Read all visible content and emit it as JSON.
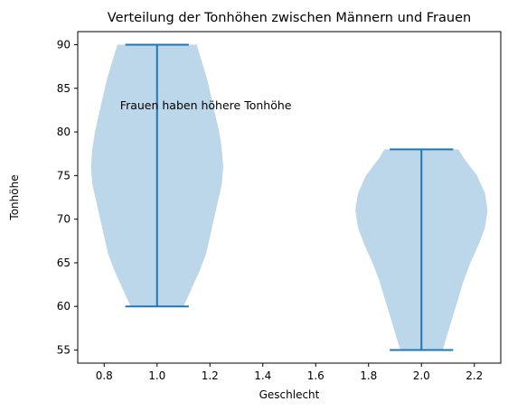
{
  "chart_data": {
    "type": "violin",
    "title": "Verteilung der Tonhöhen zwischen Männern und Frauen",
    "xlabel": "Geschlecht",
    "ylabel": "Tonhöhe",
    "xlim": [
      0.7,
      2.3
    ],
    "ylim": [
      53.5,
      91.5
    ],
    "xticks": [
      0.8,
      1.0,
      1.2,
      1.4,
      1.6,
      1.8,
      2.0,
      2.2
    ],
    "xtick_labels": [
      "0.8",
      "1.0",
      "1.2",
      "1.4",
      "1.6",
      "1.8",
      "2.0",
      "2.2"
    ],
    "yticks": [
      55,
      60,
      65,
      70,
      75,
      80,
      85,
      90
    ],
    "ytick_labels": [
      "55",
      "60",
      "65",
      "70",
      "75",
      "80",
      "85",
      "90"
    ],
    "grid": false,
    "colors": {
      "body": "#bcd6ea",
      "lines": "#1f77b4"
    },
    "violins": [
      {
        "position": 1.0,
        "min": 60,
        "max": 90,
        "profile": [
          [
            60,
            0.1
          ],
          [
            62,
            0.13
          ],
          [
            64,
            0.16
          ],
          [
            66,
            0.185
          ],
          [
            68,
            0.2
          ],
          [
            70,
            0.215
          ],
          [
            72,
            0.23
          ],
          [
            74,
            0.245
          ],
          [
            76,
            0.25
          ],
          [
            78,
            0.245
          ],
          [
            80,
            0.235
          ],
          [
            82,
            0.22
          ],
          [
            84,
            0.205
          ],
          [
            86,
            0.19
          ],
          [
            88,
            0.17
          ],
          [
            90,
            0.15
          ]
        ]
      },
      {
        "position": 2.0,
        "min": 55,
        "max": 78,
        "profile": [
          [
            55,
            0.08
          ],
          [
            57,
            0.1
          ],
          [
            59,
            0.12
          ],
          [
            61,
            0.14
          ],
          [
            63,
            0.16
          ],
          [
            65,
            0.185
          ],
          [
            67,
            0.215
          ],
          [
            69,
            0.24
          ],
          [
            71,
            0.25
          ],
          [
            73,
            0.24
          ],
          [
            75,
            0.21
          ],
          [
            76,
            0.185
          ],
          [
            77,
            0.16
          ],
          [
            78,
            0.14
          ]
        ]
      }
    ],
    "annotations": [
      {
        "text": "Frauen haben höhere Tonhöhe",
        "x": 0.86,
        "y": 83
      }
    ]
  }
}
